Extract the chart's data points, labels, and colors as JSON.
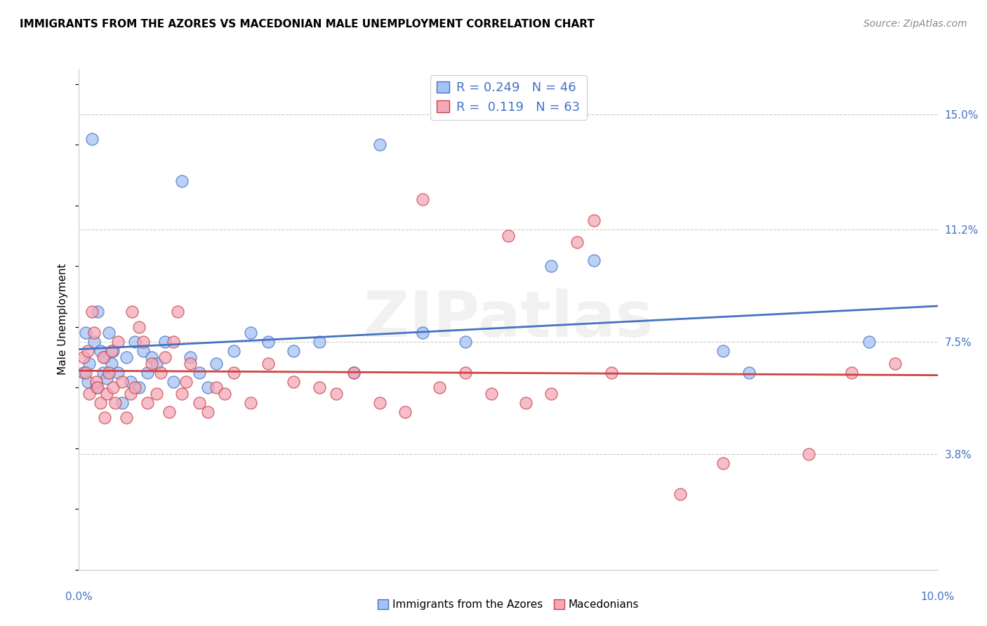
{
  "title": "IMMIGRANTS FROM THE AZORES VS MACEDONIAN MALE UNEMPLOYMENT CORRELATION CHART",
  "source": "Source: ZipAtlas.com",
  "ylabel": "Male Unemployment",
  "ytick_labels": [
    "3.8%",
    "7.5%",
    "11.2%",
    "15.0%"
  ],
  "ytick_vals": [
    3.8,
    7.5,
    11.2,
    15.0
  ],
  "xlim": [
    0,
    10.0
  ],
  "ylim": [
    0,
    16.5
  ],
  "legend_labels": [
    "Immigrants from the Azores",
    "Macedonians"
  ],
  "legend_R": [
    "0.249",
    "0.119"
  ],
  "legend_N": [
    "46",
    "63"
  ],
  "watermark": "ZIPatlas",
  "blue_color": "#a4c2f4",
  "pink_color": "#f4a7b9",
  "line_blue": "#4472c4",
  "line_pink": "#cc4444",
  "blue_scatter": [
    [
      0.05,
      6.5
    ],
    [
      0.08,
      7.8
    ],
    [
      0.1,
      6.2
    ],
    [
      0.12,
      6.8
    ],
    [
      0.15,
      14.2
    ],
    [
      0.18,
      7.5
    ],
    [
      0.2,
      6.0
    ],
    [
      0.22,
      8.5
    ],
    [
      0.25,
      7.2
    ],
    [
      0.28,
      6.5
    ],
    [
      0.3,
      7.0
    ],
    [
      0.32,
      6.3
    ],
    [
      0.35,
      7.8
    ],
    [
      0.38,
      6.8
    ],
    [
      0.4,
      7.2
    ],
    [
      0.45,
      6.5
    ],
    [
      0.5,
      5.5
    ],
    [
      0.55,
      7.0
    ],
    [
      0.6,
      6.2
    ],
    [
      0.65,
      7.5
    ],
    [
      0.7,
      6.0
    ],
    [
      0.75,
      7.2
    ],
    [
      0.8,
      6.5
    ],
    [
      0.85,
      7.0
    ],
    [
      0.9,
      6.8
    ],
    [
      1.0,
      7.5
    ],
    [
      1.1,
      6.2
    ],
    [
      1.2,
      12.8
    ],
    [
      1.3,
      7.0
    ],
    [
      1.4,
      6.5
    ],
    [
      1.5,
      6.0
    ],
    [
      1.6,
      6.8
    ],
    [
      1.8,
      7.2
    ],
    [
      2.0,
      7.8
    ],
    [
      2.2,
      7.5
    ],
    [
      2.5,
      7.2
    ],
    [
      2.8,
      7.5
    ],
    [
      3.2,
      6.5
    ],
    [
      3.5,
      14.0
    ],
    [
      4.0,
      7.8
    ],
    [
      4.5,
      7.5
    ],
    [
      5.5,
      10.0
    ],
    [
      6.0,
      10.2
    ],
    [
      7.5,
      7.2
    ],
    [
      7.8,
      6.5
    ],
    [
      9.2,
      7.5
    ]
  ],
  "pink_scatter": [
    [
      0.05,
      7.0
    ],
    [
      0.08,
      6.5
    ],
    [
      0.1,
      7.2
    ],
    [
      0.12,
      5.8
    ],
    [
      0.15,
      8.5
    ],
    [
      0.18,
      7.8
    ],
    [
      0.2,
      6.2
    ],
    [
      0.22,
      6.0
    ],
    [
      0.25,
      5.5
    ],
    [
      0.28,
      7.0
    ],
    [
      0.3,
      5.0
    ],
    [
      0.32,
      5.8
    ],
    [
      0.35,
      6.5
    ],
    [
      0.38,
      7.2
    ],
    [
      0.4,
      6.0
    ],
    [
      0.42,
      5.5
    ],
    [
      0.45,
      7.5
    ],
    [
      0.5,
      6.2
    ],
    [
      0.55,
      5.0
    ],
    [
      0.6,
      5.8
    ],
    [
      0.62,
      8.5
    ],
    [
      0.65,
      6.0
    ],
    [
      0.7,
      8.0
    ],
    [
      0.75,
      7.5
    ],
    [
      0.8,
      5.5
    ],
    [
      0.85,
      6.8
    ],
    [
      0.9,
      5.8
    ],
    [
      0.95,
      6.5
    ],
    [
      1.0,
      7.0
    ],
    [
      1.05,
      5.2
    ],
    [
      1.1,
      7.5
    ],
    [
      1.15,
      8.5
    ],
    [
      1.2,
      5.8
    ],
    [
      1.25,
      6.2
    ],
    [
      1.3,
      6.8
    ],
    [
      1.4,
      5.5
    ],
    [
      1.5,
      5.2
    ],
    [
      1.6,
      6.0
    ],
    [
      1.7,
      5.8
    ],
    [
      1.8,
      6.5
    ],
    [
      2.0,
      5.5
    ],
    [
      2.2,
      6.8
    ],
    [
      2.5,
      6.2
    ],
    [
      2.8,
      6.0
    ],
    [
      3.0,
      5.8
    ],
    [
      3.2,
      6.5
    ],
    [
      3.5,
      5.5
    ],
    [
      3.8,
      5.2
    ],
    [
      4.0,
      12.2
    ],
    [
      4.2,
      6.0
    ],
    [
      4.5,
      6.5
    ],
    [
      4.8,
      5.8
    ],
    [
      5.0,
      11.0
    ],
    [
      5.2,
      5.5
    ],
    [
      5.5,
      5.8
    ],
    [
      5.8,
      10.8
    ],
    [
      6.0,
      11.5
    ],
    [
      6.2,
      6.5
    ],
    [
      7.0,
      2.5
    ],
    [
      7.5,
      3.5
    ],
    [
      8.5,
      3.8
    ],
    [
      9.0,
      6.5
    ],
    [
      9.5,
      6.8
    ]
  ]
}
